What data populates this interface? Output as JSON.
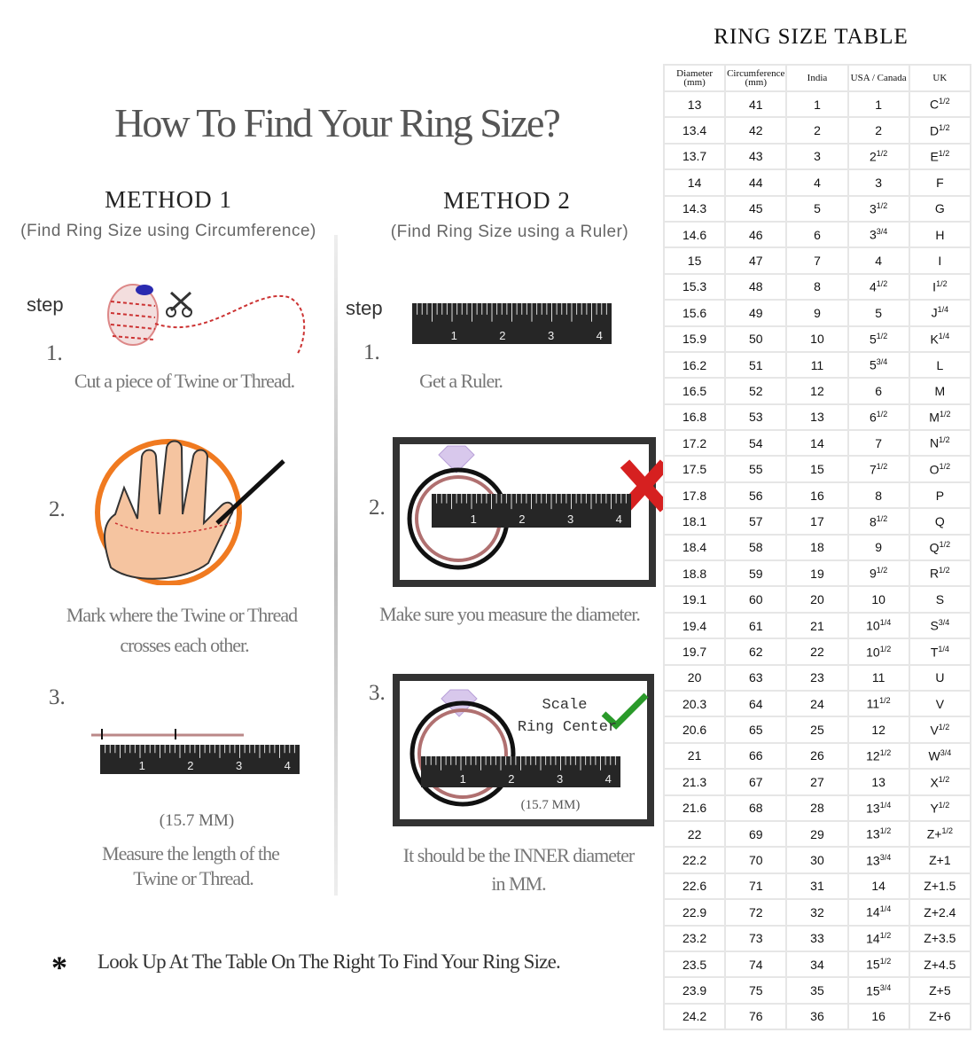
{
  "header": {
    "title": "How To Find Your Ring Size?"
  },
  "ruler": {
    "labels": [
      1,
      2,
      3,
      4
    ]
  },
  "method1": {
    "heading": "METHOD 1",
    "subtitle": "(Find Ring Size using Circumference)",
    "step_label": "step",
    "steps": [
      {
        "number": "1.",
        "text": [
          "Cut a piece of  Twine or Thread."
        ]
      },
      {
        "number": "2.",
        "text": [
          "Mark where the Twine or Thread",
          "crosses each other."
        ]
      },
      {
        "number": "3.",
        "measure": "(15.7 MM)",
        "text": [
          "Measure the length of the",
          "Twine or Thread."
        ]
      }
    ]
  },
  "method2": {
    "heading": "METHOD 2",
    "subtitle": "(Find Ring Size using a Ruler)",
    "step_label": "step",
    "steps": [
      {
        "number": "1.",
        "text": [
          "Get a Ruler."
        ]
      },
      {
        "number": "2.",
        "text": [
          "Make sure you measure the diameter."
        ]
      },
      {
        "number": "3.",
        "scale": "Scale",
        "center": "Ring Center",
        "measure": "(15.7 MM)",
        "text": [
          "It should be the INNER diameter",
          "in MM."
        ]
      }
    ]
  },
  "footer": {
    "marker": "*",
    "text": "Look Up  At The Table On The Right To Find Your Ring Size."
  },
  "table": {
    "title": "RING SIZE TABLE",
    "columns": [
      "Diameter (mm)",
      "Circumference (mm)",
      "India",
      "USA / Canada",
      "UK"
    ],
    "rows": [
      [
        13,
        41,
        1,
        1,
        {
          "base": "C",
          "sup": "1/2"
        }
      ],
      [
        13.4,
        42,
        2,
        2,
        {
          "base": "D",
          "sup": "1/2"
        }
      ],
      [
        13.7,
        43,
        3,
        {
          "base": "2",
          "sup": "1/2"
        },
        {
          "base": "E",
          "sup": "1/2"
        }
      ],
      [
        14,
        44,
        4,
        3,
        "F"
      ],
      [
        14.3,
        45,
        5,
        {
          "base": "3",
          "sup": "1/2"
        },
        "G"
      ],
      [
        14.6,
        46,
        6,
        {
          "base": "3",
          "sup": "3/4"
        },
        "H"
      ],
      [
        15,
        47,
        7,
        4,
        "I"
      ],
      [
        15.3,
        48,
        8,
        {
          "base": "4",
          "sup": "1/2"
        },
        {
          "base": "I",
          "sup": "1/2"
        }
      ],
      [
        15.6,
        49,
        9,
        5,
        {
          "base": "J",
          "sup": "1/4"
        }
      ],
      [
        15.9,
        50,
        10,
        {
          "base": "5",
          "sup": "1/2"
        },
        {
          "base": "K",
          "sup": "1/4"
        }
      ],
      [
        16.2,
        51,
        11,
        {
          "base": "5",
          "sup": "3/4"
        },
        "L"
      ],
      [
        16.5,
        52,
        12,
        6,
        "M"
      ],
      [
        16.8,
        53,
        13,
        {
          "base": "6",
          "sup": "1/2"
        },
        {
          "base": "M",
          "sup": "1/2"
        }
      ],
      [
        17.2,
        54,
        14,
        7,
        {
          "base": "N",
          "sup": "1/2"
        }
      ],
      [
        17.5,
        55,
        15,
        {
          "base": "7",
          "sup": "1/2"
        },
        {
          "base": "O",
          "sup": "1/2"
        }
      ],
      [
        17.8,
        56,
        16,
        8,
        "P"
      ],
      [
        18.1,
        57,
        17,
        {
          "base": "8",
          "sup": "1/2"
        },
        "Q"
      ],
      [
        18.4,
        58,
        18,
        9,
        {
          "base": "Q",
          "sup": "1/2"
        }
      ],
      [
        18.8,
        59,
        19,
        {
          "base": "9",
          "sup": "1/2"
        },
        {
          "base": "R",
          "sup": "1/2"
        }
      ],
      [
        19.1,
        60,
        20,
        10,
        "S"
      ],
      [
        19.4,
        61,
        21,
        {
          "base": "10",
          "sup": "1/4"
        },
        {
          "base": "S",
          "sup": "3/4"
        }
      ],
      [
        19.7,
        62,
        22,
        {
          "base": "10",
          "sup": "1/2"
        },
        {
          "base": "T",
          "sup": "1/4"
        }
      ],
      [
        20,
        63,
        23,
        11,
        "U"
      ],
      [
        20.3,
        64,
        24,
        {
          "base": "11",
          "sup": "1/2"
        },
        "V"
      ],
      [
        20.6,
        65,
        25,
        12,
        {
          "base": "V",
          "sup": "1/2"
        }
      ],
      [
        21,
        66,
        26,
        {
          "base": "12",
          "sup": "1/2"
        },
        {
          "base": "W",
          "sup": "3/4"
        }
      ],
      [
        21.3,
        67,
        27,
        13,
        {
          "base": "X",
          "sup": "1/2"
        }
      ],
      [
        21.6,
        68,
        28,
        {
          "base": "13",
          "sup": "1/4"
        },
        {
          "base": "Y",
          "sup": "1/2"
        }
      ],
      [
        22,
        69,
        29,
        {
          "base": "13",
          "sup": "1/2"
        },
        {
          "base": "Z+",
          "sup": "1/2"
        }
      ],
      [
        22.2,
        70,
        30,
        {
          "base": "13",
          "sup": "3/4"
        },
        "Z+1"
      ],
      [
        22.6,
        71,
        31,
        14,
        "Z+1.5"
      ],
      [
        22.9,
        72,
        32,
        {
          "base": "14",
          "sup": "1/4"
        },
        "Z+2.4"
      ],
      [
        23.2,
        73,
        33,
        {
          "base": "14",
          "sup": "1/2"
        },
        "Z+3.5"
      ],
      [
        23.5,
        74,
        34,
        {
          "base": "15",
          "sup": "1/2"
        },
        "Z+4.5"
      ],
      [
        23.9,
        75,
        35,
        {
          "base": "15",
          "sup": "3/4"
        },
        "Z+5"
      ],
      [
        24.2,
        76,
        36,
        16,
        "Z+6"
      ]
    ]
  }
}
